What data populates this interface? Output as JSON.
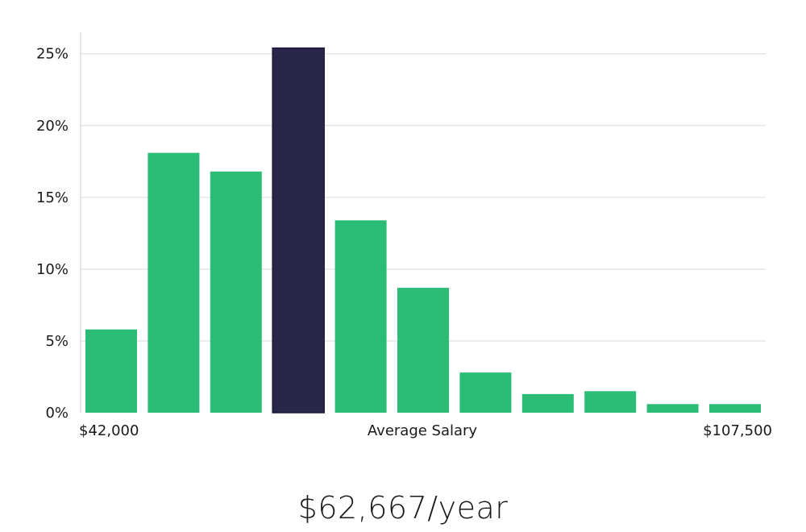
{
  "chart_data": {
    "type": "bar",
    "title": "",
    "xlabel": "Average Salary",
    "ylabel": "",
    "x_min_label": "$42,000",
    "x_max_label": "$107,500",
    "ylim": [
      0,
      26.5
    ],
    "yticks": [
      0,
      5,
      10,
      15,
      20,
      25
    ],
    "ytick_labels": [
      "0%",
      "5%",
      "10%",
      "15%",
      "20%",
      "25%"
    ],
    "values": [
      5.8,
      18.1,
      16.8,
      25.4,
      13.4,
      8.7,
      2.8,
      1.3,
      1.5,
      0.6,
      0.6
    ],
    "highlight_index": 3,
    "gridlines": true
  },
  "colors": {
    "bar": "#2bbd76",
    "highlight": "#29264a",
    "grid": "#d9d9d9",
    "axis": "#cccccc"
  },
  "summary": {
    "salary_text": "$62,667/year"
  }
}
